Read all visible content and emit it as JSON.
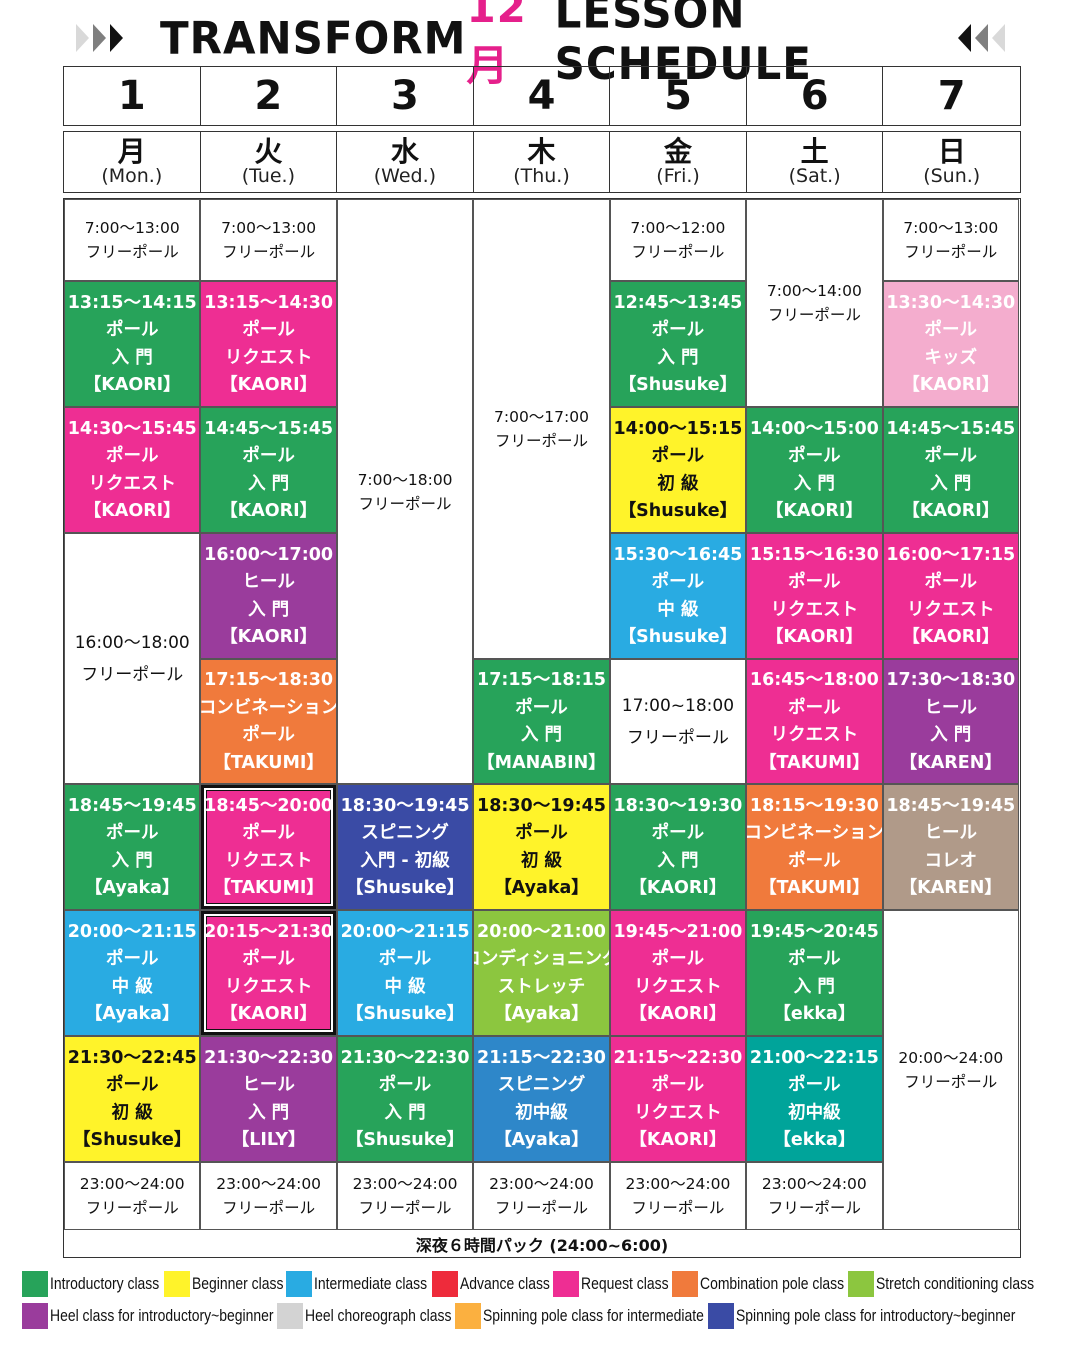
{
  "header": {
    "word1": "TRANSFORM",
    "month": "12月",
    "word2": "LESSON SCHEDULE",
    "arrow_colors": [
      "#d9d9d9",
      "#7f7f7f",
      "#111111"
    ]
  },
  "dates": [
    "1",
    "2",
    "3",
    "4",
    "5",
    "6",
    "7"
  ],
  "days": [
    {
      "kanji": "月",
      "en": "(Mon.)"
    },
    {
      "kanji": "火",
      "en": "(Tue.)"
    },
    {
      "kanji": "水",
      "en": "(Wed.)"
    },
    {
      "kanji": "木",
      "en": "(Thu.)"
    },
    {
      "kanji": "金",
      "en": "(Fri.)"
    },
    {
      "kanji": "土",
      "en": "(Sat.)"
    },
    {
      "kanji": "日",
      "en": "(Sun.)"
    }
  ],
  "colors": {
    "introductory": "#27a35a",
    "beginner": "#fff32a",
    "intermediate": "#29abe2",
    "advance": "#ee2b3b",
    "request": "#ee2e93",
    "combination": "#f07a3c",
    "stretch": "#8cc63f",
    "heel_intro": "#9a3c9c",
    "heel_choreo": "#b09a89",
    "spinning_inter": "#fbb040",
    "spinning_intro": "#3a4ba5",
    "spinning_mid": "#2e87c9",
    "teal": "#00a49a",
    "kids": "#f4adce"
  },
  "schedule": [
    {
      "id": "mon-1",
      "col": 0,
      "top": 0,
      "h": 82,
      "type": "free",
      "lines": [
        "7:00〜13:00",
        "フリーポール"
      ]
    },
    {
      "id": "mon-2",
      "col": 0,
      "top": 82,
      "h": 126,
      "color": "introductory",
      "lines": [
        "13:15〜14:15",
        "ポール",
        "入 門",
        "【KAORI】"
      ]
    },
    {
      "id": "mon-3",
      "col": 0,
      "top": 208,
      "h": 126,
      "color": "request",
      "lines": [
        "14:30〜15:45",
        "ポール",
        "リクエスト",
        "【KAORI】"
      ]
    },
    {
      "id": "mon-4",
      "col": 0,
      "top": 334,
      "h": 251,
      "type": "free",
      "big": true,
      "lines": [
        "16:00〜18:00",
        "フリーポール"
      ]
    },
    {
      "id": "mon-5",
      "col": 0,
      "top": 585,
      "h": 126,
      "color": "introductory",
      "lines": [
        "18:45〜19:45",
        "ポール",
        "入 門",
        "【Ayaka】"
      ]
    },
    {
      "id": "mon-6",
      "col": 0,
      "top": 711,
      "h": 126,
      "color": "intermediate",
      "lines": [
        "20:00〜21:15",
        "ポール",
        "中 級",
        "【Ayaka】"
      ]
    },
    {
      "id": "mon-7",
      "col": 0,
      "top": 837,
      "h": 126,
      "color": "beginner",
      "dark": true,
      "lines": [
        "21:30〜22:45",
        "ポール",
        "初 級",
        "【Shusuke】"
      ]
    },
    {
      "id": "mon-8",
      "col": 0,
      "top": 963,
      "h": 68,
      "type": "free",
      "lines": [
        "23:00〜24:00",
        "フリーポール"
      ]
    },
    {
      "id": "tue-1",
      "col": 1,
      "top": 0,
      "h": 82,
      "type": "free",
      "lines": [
        "7:00〜13:00",
        "フリーポール"
      ]
    },
    {
      "id": "tue-2",
      "col": 1,
      "top": 82,
      "h": 126,
      "color": "request",
      "lines": [
        "13:15〜14:30",
        "ポール",
        "リクエスト",
        "【KAORI】"
      ]
    },
    {
      "id": "tue-3",
      "col": 1,
      "top": 208,
      "h": 126,
      "color": "introductory",
      "lines": [
        "14:45〜15:45",
        "ポール",
        "入 門",
        "【KAORI】"
      ]
    },
    {
      "id": "tue-4",
      "col": 1,
      "top": 334,
      "h": 126,
      "color": "heel_intro",
      "lines": [
        "16:00〜17:00",
        "ヒール",
        "入 門",
        "【KAORI】"
      ]
    },
    {
      "id": "tue-5",
      "col": 1,
      "top": 460,
      "h": 125,
      "color": "combination",
      "lines": [
        "17:15〜18:30",
        "コンビネーション",
        "ポール",
        "【TAKUMI】"
      ]
    },
    {
      "id": "tue-6",
      "col": 1,
      "top": 585,
      "h": 126,
      "color": "request",
      "outlined": true,
      "lines": [
        "18:45〜20:00",
        "ポール",
        "リクエスト",
        "【TAKUMI】"
      ]
    },
    {
      "id": "tue-7",
      "col": 1,
      "top": 711,
      "h": 126,
      "color": "request",
      "outlined": true,
      "lines": [
        "20:15〜21:30",
        "ポール",
        "リクエスト",
        "【KAORI】"
      ]
    },
    {
      "id": "tue-8",
      "col": 1,
      "top": 837,
      "h": 126,
      "color": "heel_intro",
      "lines": [
        "21:30〜22:30",
        "ヒール",
        "入 門",
        "【LILY】"
      ]
    },
    {
      "id": "tue-9",
      "col": 1,
      "top": 963,
      "h": 68,
      "type": "free",
      "lines": [
        "23:00〜24:00",
        "フリーポール"
      ]
    },
    {
      "id": "wed-1",
      "col": 2,
      "top": 0,
      "h": 585,
      "type": "free",
      "lines": [
        "7:00〜18:00",
        "フリーポール"
      ]
    },
    {
      "id": "wed-2",
      "col": 2,
      "top": 585,
      "h": 126,
      "color": "spinning_intro",
      "lines": [
        "18:30〜19:45",
        "スピニング",
        "入門 - 初級",
        "【Shusuke】"
      ]
    },
    {
      "id": "wed-3",
      "col": 2,
      "top": 711,
      "h": 126,
      "color": "intermediate",
      "lines": [
        "20:00〜21:15",
        "ポール",
        "中 級",
        "【Shusuke】"
      ]
    },
    {
      "id": "wed-4",
      "col": 2,
      "top": 837,
      "h": 126,
      "color": "introductory",
      "lines": [
        "21:30〜22:30",
        "ポール",
        "入 門",
        "【Shusuke】"
      ]
    },
    {
      "id": "wed-5",
      "col": 2,
      "top": 963,
      "h": 68,
      "type": "free",
      "lines": [
        "23:00〜24:00",
        "フリーポール"
      ]
    },
    {
      "id": "thu-1",
      "col": 3,
      "top": 0,
      "h": 460,
      "type": "free",
      "lines": [
        "7:00〜17:00",
        "フリーポール"
      ]
    },
    {
      "id": "thu-2",
      "col": 3,
      "top": 460,
      "h": 125,
      "color": "introductory",
      "lines": [
        "17:15〜18:15",
        "ポール",
        "入 門",
        "【MANABIN】"
      ]
    },
    {
      "id": "thu-3",
      "col": 3,
      "top": 585,
      "h": 126,
      "color": "beginner",
      "dark": true,
      "lines": [
        "18:30〜19:45",
        "ポール",
        "初 級",
        "【Ayaka】"
      ]
    },
    {
      "id": "thu-4",
      "col": 3,
      "top": 711,
      "h": 126,
      "color": "stretch",
      "lines": [
        "20:00〜21:00",
        "コンディショニング",
        "ストレッチ",
        "【Ayaka】"
      ]
    },
    {
      "id": "thu-5",
      "col": 3,
      "top": 837,
      "h": 126,
      "color": "spinning_mid",
      "lines": [
        "21:15〜22:30",
        "スピニング",
        "初中級",
        "【Ayaka】"
      ]
    },
    {
      "id": "thu-6",
      "col": 3,
      "top": 963,
      "h": 68,
      "type": "free",
      "lines": [
        "23:00〜24:00",
        "フリーポール"
      ]
    },
    {
      "id": "fri-1",
      "col": 4,
      "top": 0,
      "h": 82,
      "type": "free",
      "lines": [
        "7:00〜12:00",
        "フリーポール"
      ]
    },
    {
      "id": "fri-2",
      "col": 4,
      "top": 82,
      "h": 126,
      "color": "introductory",
      "lines": [
        "12:45〜13:45",
        "ポール",
        "入 門",
        "【Shusuke】"
      ]
    },
    {
      "id": "fri-3",
      "col": 4,
      "top": 208,
      "h": 126,
      "color": "beginner",
      "dark": true,
      "lines": [
        "14:00〜15:15",
        "ポール",
        "初 級",
        "【Shusuke】"
      ]
    },
    {
      "id": "fri-4",
      "col": 4,
      "top": 334,
      "h": 126,
      "color": "intermediate",
      "lines": [
        "15:30〜16:45",
        "ポール",
        "中 級",
        "【Shusuke】"
      ]
    },
    {
      "id": "fri-5",
      "col": 4,
      "top": 460,
      "h": 125,
      "type": "free",
      "big": true,
      "lines": [
        "17:00~18:00",
        "フリーポール"
      ]
    },
    {
      "id": "fri-6",
      "col": 4,
      "top": 585,
      "h": 126,
      "color": "introductory",
      "lines": [
        "18:30〜19:30",
        "ポール",
        "入 門",
        "【KAORI】"
      ]
    },
    {
      "id": "fri-7",
      "col": 4,
      "top": 711,
      "h": 126,
      "color": "request",
      "lines": [
        "19:45〜21:00",
        "ポール",
        "リクエスト",
        "【KAORI】"
      ]
    },
    {
      "id": "fri-8",
      "col": 4,
      "top": 837,
      "h": 126,
      "color": "request",
      "lines": [
        "21:15〜22:30",
        "ポール",
        "リクエスト",
        "【KAORI】"
      ]
    },
    {
      "id": "fri-9",
      "col": 4,
      "top": 963,
      "h": 68,
      "type": "free",
      "lines": [
        "23:00〜24:00",
        "フリーポール"
      ]
    },
    {
      "id": "sat-1",
      "col": 5,
      "top": 0,
      "h": 208,
      "type": "free",
      "lines": [
        "7:00〜14:00",
        "フリーポール"
      ]
    },
    {
      "id": "sat-2",
      "col": 5,
      "top": 208,
      "h": 126,
      "color": "introductory",
      "lines": [
        "14:00〜15:00",
        "ポール",
        "入 門",
        "【KAORI】"
      ]
    },
    {
      "id": "sat-3",
      "col": 5,
      "top": 334,
      "h": 126,
      "color": "request",
      "lines": [
        "15:15〜16:30",
        "ポール",
        "リクエスト",
        "【KAORI】"
      ]
    },
    {
      "id": "sat-4",
      "col": 5,
      "top": 460,
      "h": 125,
      "color": "request",
      "lines": [
        "16:45〜18:00",
        "ポール",
        "リクエスト",
        "【TAKUMI】"
      ]
    },
    {
      "id": "sat-5",
      "col": 5,
      "top": 585,
      "h": 126,
      "color": "combination",
      "lines": [
        "18:15〜19:30",
        "コンビネーション",
        "ポール",
        "【TAKUMI】"
      ]
    },
    {
      "id": "sat-6",
      "col": 5,
      "top": 711,
      "h": 126,
      "color": "introductory",
      "lines": [
        "19:45〜20:45",
        "ポール",
        "入 門",
        "【ekka】"
      ]
    },
    {
      "id": "sat-7",
      "col": 5,
      "top": 837,
      "h": 126,
      "color": "teal",
      "lines": [
        "21:00〜22:15",
        "ポール",
        "初中級",
        "【ekka】"
      ]
    },
    {
      "id": "sat-8",
      "col": 5,
      "top": 963,
      "h": 68,
      "type": "free",
      "lines": [
        "23:00〜24:00",
        "フリーポール"
      ]
    },
    {
      "id": "sun-1",
      "col": 6,
      "top": 0,
      "h": 82,
      "type": "free",
      "lines": [
        "7:00〜13:00",
        "フリーポール"
      ]
    },
    {
      "id": "sun-2",
      "col": 6,
      "top": 82,
      "h": 126,
      "color": "kids",
      "lines": [
        "13:30〜14:30",
        "ポール",
        "キッズ",
        "【KAORI】"
      ]
    },
    {
      "id": "sun-3",
      "col": 6,
      "top": 208,
      "h": 126,
      "color": "introductory",
      "lines": [
        "14:45〜15:45",
        "ポール",
        "入 門",
        "【KAORI】"
      ]
    },
    {
      "id": "sun-4",
      "col": 6,
      "top": 334,
      "h": 126,
      "color": "request",
      "lines": [
        "16:00〜17:15",
        "ポール",
        "リクエスト",
        "【KAORI】"
      ]
    },
    {
      "id": "sun-5",
      "col": 6,
      "top": 460,
      "h": 125,
      "color": "heel_intro",
      "lines": [
        "17:30〜18:30",
        "ヒール",
        "入 門",
        "【KAREN】"
      ]
    },
    {
      "id": "sun-6",
      "col": 6,
      "top": 585,
      "h": 126,
      "color": "heel_choreo",
      "lines": [
        "18:45〜19:45",
        "ヒール",
        "コレオ",
        "【KAREN】"
      ]
    },
    {
      "id": "sun-7",
      "col": 6,
      "top": 711,
      "h": 320,
      "type": "free",
      "lines": [
        "20:00〜24:00",
        "フリーポール"
      ]
    }
  ],
  "night_pack": "深夜６時間パック (24:00~6:00)",
  "legend": [
    [
      {
        "color": "introductory",
        "label": "Introductory class"
      },
      {
        "color": "beginner",
        "label": "Beginner class"
      },
      {
        "color": "intermediate",
        "label": "Intermediate class"
      },
      {
        "color": "advance",
        "label": "Advance class"
      },
      {
        "color": "request",
        "label": "Request class"
      },
      {
        "color": "combination",
        "label": "Combination pole class"
      },
      {
        "color": "stretch",
        "label": "Stretch conditioning class"
      }
    ],
    [
      {
        "color": "heel_intro",
        "label": "Heel class for introductory~beginner"
      },
      {
        "color": "heel_choreo_swatch",
        "label": "Heel choreograph class"
      },
      {
        "color": "spinning_inter",
        "label": "Spinning pole class for intermediate"
      },
      {
        "color": "spinning_intro",
        "label": "Spinning pole class for introductory~beginner"
      }
    ]
  ],
  "legend_extra_colors": {
    "heel_choreo_swatch": "#d3d3d3"
  }
}
